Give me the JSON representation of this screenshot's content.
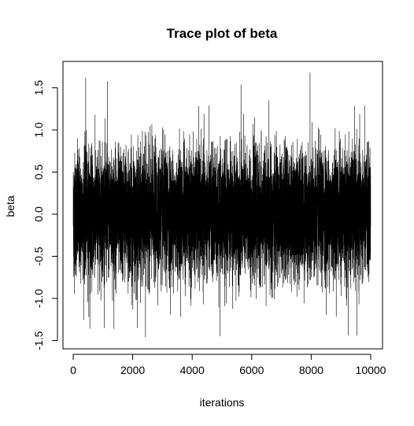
{
  "chart_data": {
    "type": "line",
    "title": "Trace plot of beta",
    "xlabel": "iterations",
    "ylabel": "beta",
    "xlim": [
      0,
      10000
    ],
    "ylim": [
      -1.5,
      1.7
    ],
    "x_ticks": [
      0,
      2000,
      4000,
      6000,
      8000,
      10000
    ],
    "x_tick_labels": [
      "0",
      "2000",
      "4000",
      "6000",
      "8000",
      "10000"
    ],
    "y_ticks": [
      -1.5,
      -1.0,
      -0.5,
      0.0,
      0.5,
      1.0,
      1.5
    ],
    "y_tick_labels": [
      "-1.5",
      "-1.0",
      "-0.5",
      "0.0",
      "0.5",
      "1.0",
      "1.5"
    ],
    "grid": false,
    "series": [
      {
        "color": "#000000",
        "mean": 0.0,
        "sd": 0.36,
        "n_points": 10000,
        "extremes": [
          {
            "x": 420,
            "y": 1.62
          },
          {
            "x": 1150,
            "y": 1.58
          },
          {
            "x": 7960,
            "y": 1.68
          },
          {
            "x": 5640,
            "y": 1.54
          },
          {
            "x": 2430,
            "y": -1.46
          },
          {
            "x": 4930,
            "y": -1.45
          },
          {
            "x": 9250,
            "y": -1.44
          },
          {
            "x": 9530,
            "y": -1.44
          },
          {
            "x": 560,
            "y": -1.36
          },
          {
            "x": 1370,
            "y": -1.36
          }
        ]
      }
    ]
  }
}
